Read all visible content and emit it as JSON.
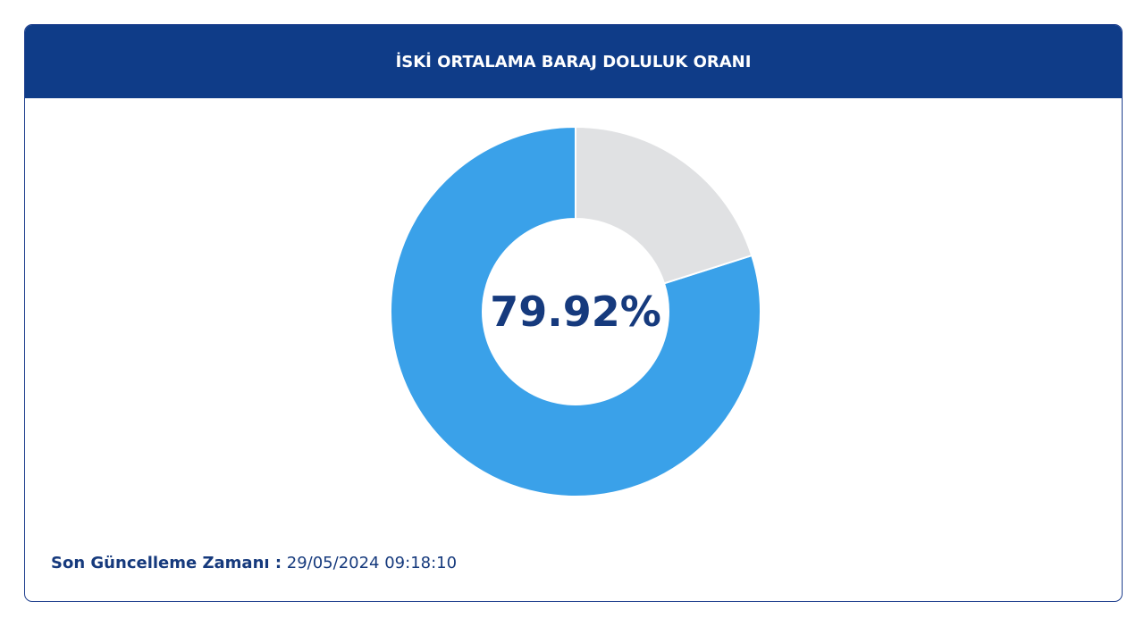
{
  "chart_data": {
    "type": "donut",
    "title": "İSKİ ORTALAMA BARAJ DOLULUK ORANI",
    "values": [
      79.92,
      20.08
    ],
    "value_labels": [
      "79.92%",
      null
    ],
    "colors": [
      "#3aa1e9",
      "#e0e1e3"
    ]
  },
  "footer": {
    "label": "Son Güncelleme Zamanı :",
    "value": "29/05/2024 09:18:10"
  }
}
